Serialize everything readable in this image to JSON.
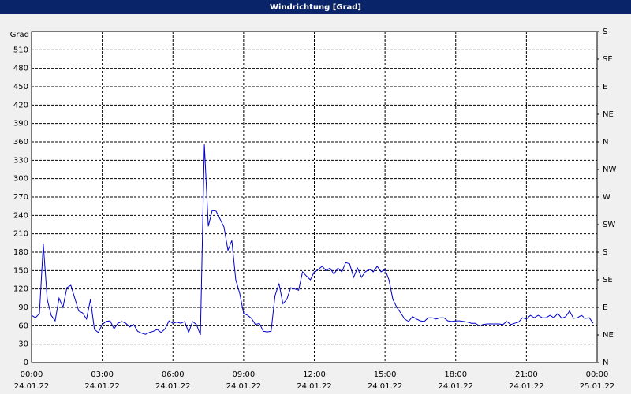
{
  "chart_data": {
    "type": "line",
    "title": "Windrichtung [Grad]",
    "y_label": "Grad",
    "x": [
      0,
      10,
      20,
      30,
      40,
      50,
      60,
      70,
      80,
      90,
      100,
      110,
      120,
      130,
      140,
      150,
      160,
      170,
      180,
      190,
      200,
      210,
      220,
      230,
      240,
      250,
      260,
      270,
      280,
      290,
      300,
      310,
      320,
      330,
      340,
      350,
      360,
      370,
      380,
      390,
      400,
      410,
      420,
      430,
      440,
      450,
      460,
      470,
      480,
      490,
      500,
      510,
      520,
      530,
      540,
      550,
      560,
      570,
      580,
      590,
      600,
      610,
      620,
      630,
      640,
      650,
      660,
      670,
      680,
      690,
      700,
      710,
      720,
      730,
      740,
      750,
      760,
      770,
      780,
      790,
      800,
      810,
      820,
      830,
      840,
      850,
      860,
      870,
      880,
      890,
      900,
      910,
      920,
      930,
      940,
      950,
      960,
      970,
      980,
      990,
      1000,
      1010,
      1020,
      1030,
      1040,
      1050,
      1060,
      1070,
      1080,
      1090,
      1100,
      1110,
      1120,
      1130,
      1140,
      1150,
      1160,
      1170,
      1180,
      1190,
      1200,
      1210,
      1220,
      1230,
      1240,
      1250,
      1260,
      1270,
      1280,
      1290,
      1300,
      1310,
      1320,
      1330,
      1340,
      1350,
      1360,
      1370,
      1380,
      1390,
      1400,
      1410,
      1420,
      1430
    ],
    "series": [
      {
        "color": "#0000cc",
        "values": [
          77,
          73,
          80,
          193,
          103,
          77,
          68,
          105,
          90,
          122,
          126,
          105,
          84,
          81,
          71,
          103,
          54,
          49,
          62,
          67,
          68,
          55,
          64,
          67,
          64,
          58,
          62,
          51,
          48,
          46,
          49,
          51,
          54,
          49,
          55,
          68,
          64,
          66,
          64,
          67,
          49,
          67,
          62,
          45,
          356,
          222,
          248,
          247,
          234,
          221,
          183,
          199,
          135,
          113,
          80,
          77,
          72,
          62,
          64,
          51,
          50,
          51,
          109,
          129,
          96,
          103,
          122,
          120,
          118,
          148,
          141,
          135,
          148,
          152,
          157,
          150,
          154,
          144,
          154,
          148,
          163,
          161,
          139,
          154,
          139,
          148,
          152,
          148,
          157,
          148,
          152,
          135,
          103,
          90,
          81,
          71,
          67,
          75,
          71,
          68,
          67,
          73,
          73,
          71,
          73,
          73,
          68,
          67,
          68,
          68,
          67,
          66,
          64,
          64,
          60,
          62,
          63,
          63,
          63,
          63,
          62,
          67,
          62,
          64,
          66,
          73,
          71,
          77,
          73,
          77,
          73,
          73,
          77,
          73,
          80,
          72,
          75,
          84,
          72,
          73,
          77,
          72,
          73,
          64
        ]
      }
    ],
    "xlim": [
      0,
      1440
    ],
    "xticks": [
      {
        "value": 0,
        "label": "00:00"
      },
      {
        "value": 180,
        "label": "03:00"
      },
      {
        "value": 360,
        "label": "06:00"
      },
      {
        "value": 540,
        "label": "09:00"
      },
      {
        "value": 720,
        "label": "12:00"
      },
      {
        "value": 900,
        "label": "15:00"
      },
      {
        "value": 1080,
        "label": "18:00"
      },
      {
        "value": 1260,
        "label": "21:00"
      },
      {
        "value": 1440,
        "label": "00:00"
      }
    ],
    "xtick_dates": [
      "24.01.22",
      "24.01.22",
      "24.01.22",
      "24.01.22",
      "24.01.22",
      "24.01.22",
      "24.01.22",
      "24.01.22",
      "25.01.22"
    ],
    "ylim": [
      0,
      540
    ],
    "yticks": [
      0,
      30,
      60,
      90,
      120,
      150,
      180,
      210,
      240,
      270,
      300,
      330,
      360,
      390,
      420,
      450,
      480,
      510
    ],
    "y2lim": [
      0,
      540
    ],
    "y2ticks": [
      {
        "value": 0,
        "label": "N"
      },
      {
        "value": 45,
        "label": "NE"
      },
      {
        "value": 90,
        "label": "E"
      },
      {
        "value": 135,
        "label": "SE"
      },
      {
        "value": 180,
        "label": "S"
      },
      {
        "value": 225,
        "label": "SW"
      },
      {
        "value": 270,
        "label": "W"
      },
      {
        "value": 315,
        "label": "NW"
      },
      {
        "value": 360,
        "label": "N"
      },
      {
        "value": 405,
        "label": "NE"
      },
      {
        "value": 450,
        "label": "E"
      },
      {
        "value": 495,
        "label": "SE"
      },
      {
        "value": 540,
        "label": "S"
      }
    ],
    "grid": true
  }
}
